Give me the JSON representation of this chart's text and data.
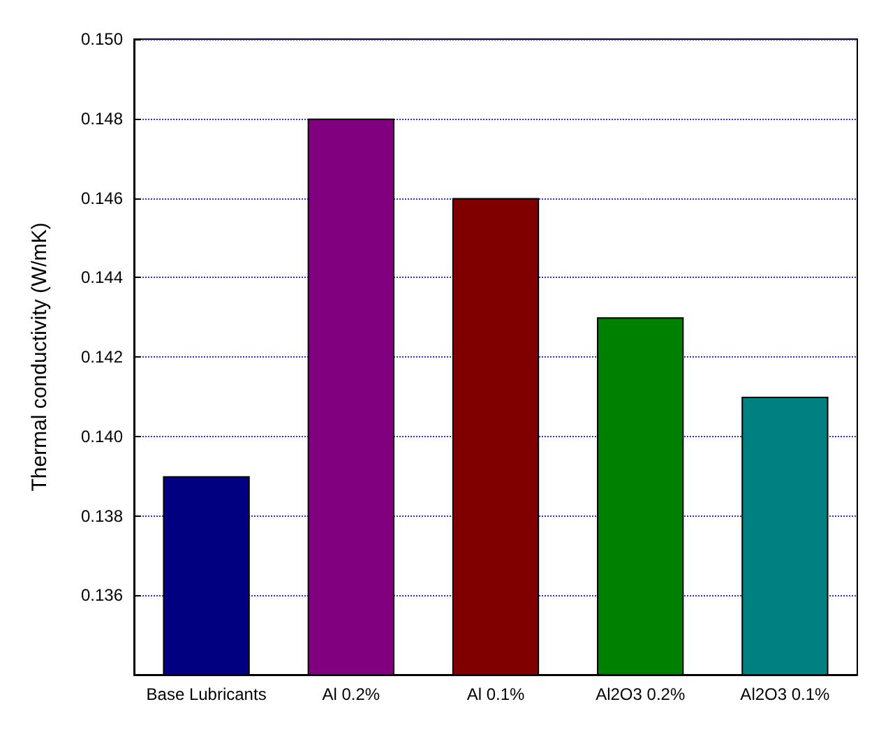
{
  "chart_data": {
    "type": "bar",
    "ylabel": "Thermal conductivity (W/mK)",
    "categories": [
      "Base Lubricants",
      "Al 0.2%",
      "Al 0.1%",
      "Al2O3 0.2%",
      "Al2O3 0.1%"
    ],
    "values": [
      0.139,
      0.148,
      0.146,
      0.143,
      0.141
    ],
    "colors": [
      "#000080",
      "#800080",
      "#800000",
      "#008000",
      "#008080"
    ],
    "ylim": [
      0.134,
      0.15
    ],
    "yticks": [
      0.136,
      0.138,
      {
        "value": 0.14,
        "label": "0.140"
      },
      0.142,
      0.144,
      0.146,
      0.148,
      {
        "value": 0.15,
        "label": "0.150"
      }
    ],
    "grid": "y"
  }
}
